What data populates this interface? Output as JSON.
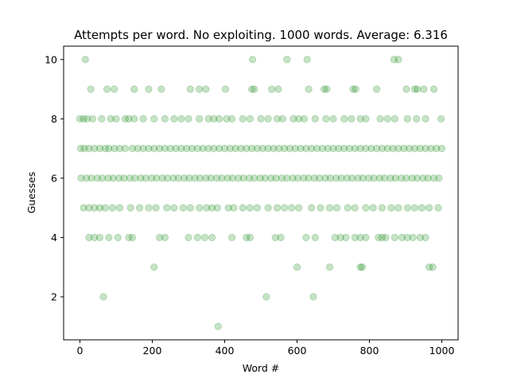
{
  "chart_data": {
    "type": "scatter",
    "title": "Attempts per word. No exploiting. 1000 words. Average: 6.316",
    "xlabel": "Word #",
    "ylabel": "Guesses",
    "xlim": [
      -45,
      1045
    ],
    "ylim": [
      0.55,
      10.45
    ],
    "xticks": [
      0,
      200,
      400,
      600,
      800,
      1000
    ],
    "yticks": [
      2,
      4,
      6,
      8,
      10
    ],
    "grid": false,
    "marker_color": "#008000",
    "marker_alpha": 0.22,
    "series": [
      {
        "points": [
          [
            15,
            10
          ],
          [
            477,
            10
          ],
          [
            572,
            10
          ],
          [
            628,
            10
          ],
          [
            868,
            10
          ],
          [
            880,
            10
          ],
          [
            30,
            9
          ],
          [
            75,
            9
          ],
          [
            95,
            9
          ],
          [
            150,
            9
          ],
          [
            190,
            9
          ],
          [
            225,
            9
          ],
          [
            305,
            9
          ],
          [
            330,
            9
          ],
          [
            348,
            9
          ],
          [
            402,
            9
          ],
          [
            475,
            9
          ],
          [
            482,
            9
          ],
          [
            530,
            9
          ],
          [
            548,
            9
          ],
          [
            632,
            9
          ],
          [
            675,
            9
          ],
          [
            682,
            9
          ],
          [
            755,
            9
          ],
          [
            762,
            9
          ],
          [
            820,
            9
          ],
          [
            902,
            9
          ],
          [
            925,
            9
          ],
          [
            932,
            9
          ],
          [
            950,
            9
          ],
          [
            978,
            9
          ],
          [
            0,
            8
          ],
          [
            10,
            8
          ],
          [
            20,
            8
          ],
          [
            35,
            8
          ],
          [
            60,
            8
          ],
          [
            85,
            8
          ],
          [
            100,
            8
          ],
          [
            125,
            8
          ],
          [
            135,
            8
          ],
          [
            150,
            8
          ],
          [
            175,
            8
          ],
          [
            205,
            8
          ],
          [
            235,
            8
          ],
          [
            260,
            8
          ],
          [
            280,
            8
          ],
          [
            300,
            8
          ],
          [
            330,
            8
          ],
          [
            355,
            8
          ],
          [
            370,
            8
          ],
          [
            385,
            8
          ],
          [
            405,
            8
          ],
          [
            420,
            8
          ],
          [
            450,
            8
          ],
          [
            470,
            8
          ],
          [
            500,
            8
          ],
          [
            520,
            8
          ],
          [
            545,
            8
          ],
          [
            560,
            8
          ],
          [
            590,
            8
          ],
          [
            605,
            8
          ],
          [
            620,
            8
          ],
          [
            650,
            8
          ],
          [
            680,
            8
          ],
          [
            700,
            8
          ],
          [
            730,
            8
          ],
          [
            750,
            8
          ],
          [
            775,
            8
          ],
          [
            790,
            8
          ],
          [
            830,
            8
          ],
          [
            850,
            8
          ],
          [
            870,
            8
          ],
          [
            905,
            8
          ],
          [
            930,
            8
          ],
          [
            955,
            8
          ],
          [
            998,
            8
          ],
          [
            2,
            7
          ],
          [
            12,
            7
          ],
          [
            25,
            7
          ],
          [
            40,
            7
          ],
          [
            55,
            7
          ],
          [
            70,
            7
          ],
          [
            80,
            7
          ],
          [
            95,
            7
          ],
          [
            110,
            7
          ],
          [
            125,
            7
          ],
          [
            145,
            7
          ],
          [
            160,
            7
          ],
          [
            175,
            7
          ],
          [
            190,
            7
          ],
          [
            205,
            7
          ],
          [
            220,
            7
          ],
          [
            235,
            7
          ],
          [
            250,
            7
          ],
          [
            265,
            7
          ],
          [
            280,
            7
          ],
          [
            295,
            7
          ],
          [
            310,
            7
          ],
          [
            325,
            7
          ],
          [
            340,
            7
          ],
          [
            355,
            7
          ],
          [
            370,
            7
          ],
          [
            385,
            7
          ],
          [
            400,
            7
          ],
          [
            415,
            7
          ],
          [
            430,
            7
          ],
          [
            445,
            7
          ],
          [
            460,
            7
          ],
          [
            475,
            7
          ],
          [
            490,
            7
          ],
          [
            505,
            7
          ],
          [
            520,
            7
          ],
          [
            535,
            7
          ],
          [
            550,
            7
          ],
          [
            565,
            7
          ],
          [
            580,
            7
          ],
          [
            595,
            7
          ],
          [
            610,
            7
          ],
          [
            625,
            7
          ],
          [
            640,
            7
          ],
          [
            655,
            7
          ],
          [
            670,
            7
          ],
          [
            685,
            7
          ],
          [
            700,
            7
          ],
          [
            715,
            7
          ],
          [
            730,
            7
          ],
          [
            745,
            7
          ],
          [
            760,
            7
          ],
          [
            775,
            7
          ],
          [
            790,
            7
          ],
          [
            805,
            7
          ],
          [
            820,
            7
          ],
          [
            835,
            7
          ],
          [
            850,
            7
          ],
          [
            865,
            7
          ],
          [
            880,
            7
          ],
          [
            895,
            7
          ],
          [
            910,
            7
          ],
          [
            925,
            7
          ],
          [
            940,
            7
          ],
          [
            955,
            7
          ],
          [
            970,
            7
          ],
          [
            985,
            7
          ],
          [
            1000,
            7
          ],
          [
            3,
            6
          ],
          [
            18,
            6
          ],
          [
            32,
            6
          ],
          [
            48,
            6
          ],
          [
            62,
            6
          ],
          [
            78,
            6
          ],
          [
            92,
            6
          ],
          [
            108,
            6
          ],
          [
            122,
            6
          ],
          [
            138,
            6
          ],
          [
            152,
            6
          ],
          [
            168,
            6
          ],
          [
            182,
            6
          ],
          [
            198,
            6
          ],
          [
            212,
            6
          ],
          [
            228,
            6
          ],
          [
            242,
            6
          ],
          [
            258,
            6
          ],
          [
            272,
            6
          ],
          [
            288,
            6
          ],
          [
            302,
            6
          ],
          [
            318,
            6
          ],
          [
            332,
            6
          ],
          [
            348,
            6
          ],
          [
            362,
            6
          ],
          [
            378,
            6
          ],
          [
            392,
            6
          ],
          [
            408,
            6
          ],
          [
            422,
            6
          ],
          [
            438,
            6
          ],
          [
            452,
            6
          ],
          [
            468,
            6
          ],
          [
            482,
            6
          ],
          [
            498,
            6
          ],
          [
            512,
            6
          ],
          [
            528,
            6
          ],
          [
            542,
            6
          ],
          [
            558,
            6
          ],
          [
            572,
            6
          ],
          [
            588,
            6
          ],
          [
            602,
            6
          ],
          [
            618,
            6
          ],
          [
            632,
            6
          ],
          [
            648,
            6
          ],
          [
            662,
            6
          ],
          [
            678,
            6
          ],
          [
            692,
            6
          ],
          [
            708,
            6
          ],
          [
            722,
            6
          ],
          [
            738,
            6
          ],
          [
            752,
            6
          ],
          [
            768,
            6
          ],
          [
            782,
            6
          ],
          [
            798,
            6
          ],
          [
            812,
            6
          ],
          [
            828,
            6
          ],
          [
            842,
            6
          ],
          [
            858,
            6
          ],
          [
            872,
            6
          ],
          [
            888,
            6
          ],
          [
            902,
            6
          ],
          [
            918,
            6
          ],
          [
            932,
            6
          ],
          [
            948,
            6
          ],
          [
            962,
            6
          ],
          [
            978,
            6
          ],
          [
            992,
            6
          ],
          [
            10,
            5
          ],
          [
            25,
            5
          ],
          [
            40,
            5
          ],
          [
            55,
            5
          ],
          [
            70,
            5
          ],
          [
            90,
            5
          ],
          [
            110,
            5
          ],
          [
            140,
            5
          ],
          [
            165,
            5
          ],
          [
            190,
            5
          ],
          [
            210,
            5
          ],
          [
            240,
            5
          ],
          [
            260,
            5
          ],
          [
            285,
            5
          ],
          [
            305,
            5
          ],
          [
            330,
            5
          ],
          [
            350,
            5
          ],
          [
            365,
            5
          ],
          [
            380,
            5
          ],
          [
            410,
            5
          ],
          [
            425,
            5
          ],
          [
            450,
            5
          ],
          [
            470,
            5
          ],
          [
            490,
            5
          ],
          [
            520,
            5
          ],
          [
            545,
            5
          ],
          [
            565,
            5
          ],
          [
            585,
            5
          ],
          [
            605,
            5
          ],
          [
            640,
            5
          ],
          [
            665,
            5
          ],
          [
            690,
            5
          ],
          [
            710,
            5
          ],
          [
            740,
            5
          ],
          [
            760,
            5
          ],
          [
            790,
            5
          ],
          [
            810,
            5
          ],
          [
            835,
            5
          ],
          [
            860,
            5
          ],
          [
            880,
            5
          ],
          [
            905,
            5
          ],
          [
            925,
            5
          ],
          [
            945,
            5
          ],
          [
            965,
            5
          ],
          [
            990,
            5
          ],
          [
            25,
            4
          ],
          [
            40,
            4
          ],
          [
            55,
            4
          ],
          [
            80,
            4
          ],
          [
            105,
            4
          ],
          [
            135,
            4
          ],
          [
            145,
            4
          ],
          [
            220,
            4
          ],
          [
            235,
            4
          ],
          [
            300,
            4
          ],
          [
            325,
            4
          ],
          [
            345,
            4
          ],
          [
            365,
            4
          ],
          [
            420,
            4
          ],
          [
            460,
            4
          ],
          [
            470,
            4
          ],
          [
            540,
            4
          ],
          [
            555,
            4
          ],
          [
            625,
            4
          ],
          [
            650,
            4
          ],
          [
            705,
            4
          ],
          [
            720,
            4
          ],
          [
            735,
            4
          ],
          [
            760,
            4
          ],
          [
            775,
            4
          ],
          [
            790,
            4
          ],
          [
            825,
            4
          ],
          [
            835,
            4
          ],
          [
            845,
            4
          ],
          [
            870,
            4
          ],
          [
            890,
            4
          ],
          [
            905,
            4
          ],
          [
            920,
            4
          ],
          [
            940,
            4
          ],
          [
            955,
            4
          ],
          [
            205,
            3
          ],
          [
            600,
            3
          ],
          [
            690,
            3
          ],
          [
            775,
            3
          ],
          [
            780,
            3
          ],
          [
            965,
            3
          ],
          [
            975,
            3
          ],
          [
            65,
            2
          ],
          [
            515,
            2
          ],
          [
            645,
            2
          ],
          [
            382,
            1
          ]
        ]
      }
    ]
  }
}
